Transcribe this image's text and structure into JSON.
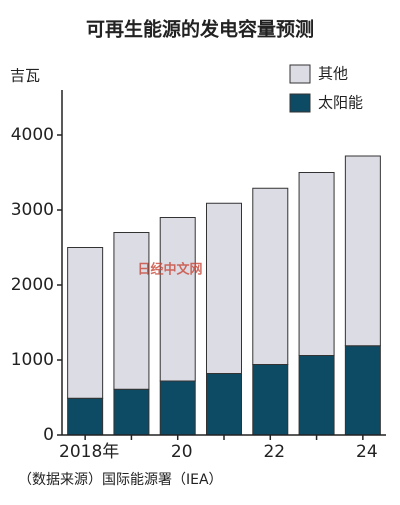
{
  "chart_data": {
    "type": "stacked_bar",
    "title": "可再生能源的发电容量预测",
    "y_label": "吉瓦",
    "source": "（数据来源）国际能源署（IEA）",
    "watermark": "日经中文网",
    "categories": [
      "2018年",
      null,
      "20",
      null,
      "22",
      null,
      "24"
    ],
    "series": [
      {
        "name": "太阳能",
        "color": "#0d4a63",
        "values": [
          490,
          610,
          720,
          820,
          940,
          1060,
          1190
        ]
      },
      {
        "name": "其他",
        "color": "#dcdce4",
        "values": [
          2010,
          2090,
          2180,
          2270,
          2350,
          2440,
          2530
        ]
      }
    ],
    "ylim": [
      0,
      4600
    ],
    "yticks": [
      0,
      1000,
      2000,
      3000,
      4000
    ]
  }
}
